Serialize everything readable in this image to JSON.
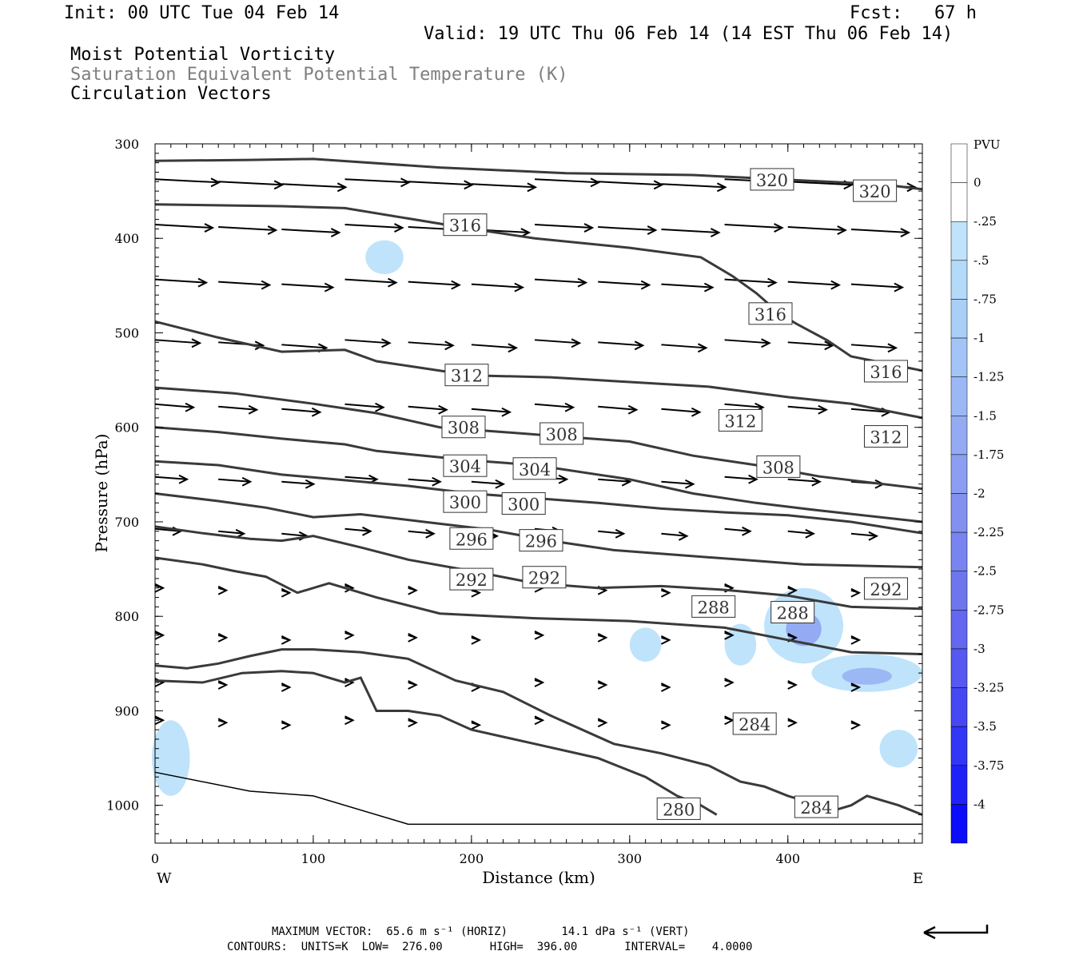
{
  "header": {
    "init": "Init: 00 UTC Tue 04 Feb 14",
    "fcst": "Fcst:   67 h",
    "valid": "Valid: 19 UTC Thu 06 Feb 14 (14 EST Thu 06 Feb 14)",
    "field1": "Moist Potential Vorticity",
    "field2": "Saturation Equivalent Potential Temperature (K)",
    "field3": "Circulation Vectors"
  },
  "colors": {
    "field2_text": "#7f7f7f",
    "contour": "#3a3a3a",
    "pv_light": "#bfe3fb",
    "pv_mid": "#a9c8f5",
    "pv_dark": "#8a9ef0"
  },
  "footer": {
    "max_vector": "MAXIMUM VECTOR:  65.6 m s⁻¹ (HORIZ)        14.1 dPa s⁻¹ (VERT)",
    "contours": "CONTOURS:  UNITS=K  LOW=  276.00       HIGH=  396.00       INTERVAL=    4.0000",
    "ref_arrow_icon": "left-arrow-icon"
  },
  "chart_data": {
    "type": "cross-section contour",
    "xlabel": "Distance (km)",
    "ylabel": "Pressure (hPa)",
    "xlim": [
      0,
      485
    ],
    "ylim": [
      300,
      1040
    ],
    "x_ticks": [
      "0",
      "100",
      "200",
      "300",
      "400"
    ],
    "y_ticks": [
      "300",
      "400",
      "500",
      "600",
      "700",
      "800",
      "900",
      "1000"
    ],
    "x_left_label": "W",
    "x_right_label": "E",
    "colorbar": {
      "title": "PVU",
      "levels": [
        "0",
        "-.25",
        "-.5",
        "-.75",
        "-1",
        "-1.25",
        "-1.5",
        "-1.75",
        "-2",
        "-2.25",
        "-2.5",
        "-2.75",
        "-3",
        "-3.25",
        "-3.5",
        "-3.75",
        "-4"
      ],
      "colors": [
        "#ffffff",
        "#ffffff",
        "#bfe3fb",
        "#b4daf9",
        "#aacff7",
        "#a3c4f6",
        "#9cb8f4",
        "#94abf3",
        "#8b9ef1",
        "#8291f0",
        "#7884ef",
        "#6e76ee",
        "#6467ef",
        "#5658f1",
        "#4548f3",
        "#3236f6",
        "#1f22f8",
        "#0a0cfb"
      ]
    },
    "contour_levels": [
      280,
      284,
      288,
      292,
      296,
      300,
      304,
      308,
      312,
      316,
      320
    ],
    "contour_labels": [
      {
        "text": "320",
        "x": 390,
        "p": 338
      },
      {
        "text": "320",
        "x": 455,
        "p": 350
      },
      {
        "text": "316",
        "x": 196,
        "p": 386
      },
      {
        "text": "316",
        "x": 389,
        "p": 480
      },
      {
        "text": "316",
        "x": 462,
        "p": 541
      },
      {
        "text": "312",
        "x": 197,
        "p": 545
      },
      {
        "text": "312",
        "x": 370,
        "p": 593
      },
      {
        "text": "312",
        "x": 462,
        "p": 610
      },
      {
        "text": "308",
        "x": 195,
        "p": 600
      },
      {
        "text": "308",
        "x": 257,
        "p": 607
      },
      {
        "text": "308",
        "x": 394,
        "p": 642
      },
      {
        "text": "304",
        "x": 196,
        "p": 641
      },
      {
        "text": "304",
        "x": 240,
        "p": 644
      },
      {
        "text": "300",
        "x": 196,
        "p": 679
      },
      {
        "text": "300",
        "x": 233,
        "p": 681
      },
      {
        "text": "296",
        "x": 200,
        "p": 718
      },
      {
        "text": "296",
        "x": 244,
        "p": 720
      },
      {
        "text": "292",
        "x": 200,
        "p": 761
      },
      {
        "text": "292",
        "x": 246,
        "p": 759
      },
      {
        "text": "292",
        "x": 462,
        "p": 771
      },
      {
        "text": "288",
        "x": 353,
        "p": 790
      },
      {
        "text": "288",
        "x": 403,
        "p": 796
      },
      {
        "text": "284",
        "x": 379,
        "p": 914
      },
      {
        "text": "284",
        "x": 418,
        "p": 1002
      },
      {
        "text": "280",
        "x": 331,
        "p": 1004
      }
    ],
    "contours": [
      {
        "level": 320,
        "points": [
          [
            0,
            318
          ],
          [
            60,
            317
          ],
          [
            100,
            316
          ],
          [
            180,
            325
          ],
          [
            260,
            331
          ],
          [
            340,
            333
          ],
          [
            400,
            338
          ],
          [
            460,
            343
          ],
          [
            485,
            348
          ]
        ]
      },
      {
        "level": 316,
        "points": [
          [
            0,
            364
          ],
          [
            80,
            366
          ],
          [
            120,
            368
          ],
          [
            200,
            390
          ],
          [
            240,
            400
          ],
          [
            300,
            410
          ],
          [
            345,
            420
          ],
          [
            365,
            440
          ],
          [
            380,
            458
          ],
          [
            395,
            480
          ],
          [
            405,
            490
          ],
          [
            425,
            508
          ],
          [
            440,
            525
          ],
          [
            485,
            540
          ]
        ]
      },
      {
        "level": 312,
        "points": [
          [
            0,
            488
          ],
          [
            40,
            505
          ],
          [
            80,
            520
          ],
          [
            120,
            518
          ],
          [
            140,
            530
          ],
          [
            160,
            535
          ],
          [
            200,
            545
          ],
          [
            250,
            547
          ],
          [
            300,
            552
          ],
          [
            350,
            557
          ],
          [
            400,
            568
          ],
          [
            440,
            575
          ],
          [
            485,
            590
          ]
        ]
      },
      {
        "level": 308,
        "points": [
          [
            0,
            558
          ],
          [
            50,
            564
          ],
          [
            100,
            575
          ],
          [
            140,
            585
          ],
          [
            180,
            600
          ],
          [
            220,
            605
          ],
          [
            260,
            610
          ],
          [
            300,
            615
          ],
          [
            340,
            630
          ],
          [
            380,
            640
          ],
          [
            420,
            652
          ],
          [
            485,
            665
          ]
        ]
      },
      {
        "level": 304,
        "points": [
          [
            0,
            600
          ],
          [
            40,
            605
          ],
          [
            80,
            612
          ],
          [
            120,
            618
          ],
          [
            140,
            625
          ],
          [
            170,
            630
          ],
          [
            200,
            635
          ],
          [
            240,
            640
          ],
          [
            300,
            655
          ],
          [
            340,
            670
          ],
          [
            380,
            680
          ],
          [
            420,
            688
          ],
          [
            485,
            700
          ]
        ]
      },
      {
        "level": 300,
        "points": [
          [
            0,
            636
          ],
          [
            40,
            640
          ],
          [
            80,
            650
          ],
          [
            120,
            656
          ],
          [
            160,
            662
          ],
          [
            200,
            670
          ],
          [
            240,
            675
          ],
          [
            280,
            680
          ],
          [
            320,
            686
          ],
          [
            360,
            690
          ],
          [
            400,
            693
          ],
          [
            440,
            700
          ],
          [
            485,
            712
          ]
        ]
      },
      {
        "level": 296,
        "points": [
          [
            0,
            670
          ],
          [
            40,
            678
          ],
          [
            70,
            685
          ],
          [
            100,
            695
          ],
          [
            130,
            692
          ],
          [
            170,
            700
          ],
          [
            210,
            708
          ],
          [
            250,
            720
          ],
          [
            290,
            730
          ],
          [
            330,
            735
          ],
          [
            370,
            740
          ],
          [
            410,
            745
          ],
          [
            485,
            748
          ]
        ]
      },
      {
        "level": 292,
        "points": [
          [
            0,
            705
          ],
          [
            30,
            712
          ],
          [
            60,
            718
          ],
          [
            80,
            720
          ],
          [
            100,
            715
          ],
          [
            130,
            727
          ],
          [
            160,
            740
          ],
          [
            200,
            752
          ],
          [
            240,
            765
          ],
          [
            280,
            770
          ],
          [
            320,
            768
          ],
          [
            360,
            772
          ],
          [
            400,
            778
          ],
          [
            440,
            790
          ],
          [
            485,
            792
          ]
        ]
      },
      {
        "level": 288,
        "points": [
          [
            0,
            738
          ],
          [
            30,
            745
          ],
          [
            50,
            752
          ],
          [
            70,
            758
          ],
          [
            90,
            775
          ],
          [
            110,
            765
          ],
          [
            140,
            780
          ],
          [
            180,
            797
          ],
          [
            240,
            802
          ],
          [
            300,
            805
          ],
          [
            360,
            812
          ],
          [
            400,
            825
          ],
          [
            440,
            838
          ],
          [
            485,
            840
          ]
        ]
      },
      {
        "level": 284,
        "points": [
          [
            0,
            852
          ],
          [
            20,
            855
          ],
          [
            40,
            850
          ],
          [
            60,
            842
          ],
          [
            80,
            835
          ],
          [
            100,
            835
          ],
          [
            130,
            838
          ],
          [
            160,
            845
          ],
          [
            190,
            868
          ],
          [
            220,
            880
          ],
          [
            250,
            905
          ],
          [
            290,
            935
          ],
          [
            320,
            945
          ],
          [
            350,
            958
          ],
          [
            370,
            975
          ],
          [
            385,
            980
          ],
          [
            400,
            990
          ],
          [
            410,
            995
          ],
          [
            420,
            1000
          ],
          [
            430,
            1005
          ],
          [
            440,
            1000
          ],
          [
            450,
            990
          ],
          [
            470,
            1000
          ],
          [
            485,
            1010
          ]
        ]
      },
      {
        "level": 280,
        "points": [
          [
            0,
            868
          ],
          [
            30,
            870
          ],
          [
            55,
            860
          ],
          [
            80,
            858
          ],
          [
            100,
            860
          ],
          [
            120,
            870
          ],
          [
            130,
            865
          ],
          [
            140,
            900
          ],
          [
            160,
            900
          ],
          [
            180,
            905
          ],
          [
            200,
            920
          ],
          [
            240,
            935
          ],
          [
            280,
            950
          ],
          [
            310,
            970
          ],
          [
            330,
            990
          ],
          [
            345,
            1000
          ],
          [
            355,
            1010
          ]
        ]
      }
    ],
    "pv_patches_pvu": [
      {
        "x": 145,
        "p": 420,
        "rx": 12,
        "rp": 18,
        "value": -0.5
      },
      {
        "x": 10,
        "p": 950,
        "rx": 12,
        "rp": 40,
        "value": -0.75
      },
      {
        "x": 310,
        "p": 830,
        "rx": 10,
        "rp": 18,
        "value": -0.75
      },
      {
        "x": 370,
        "p": 830,
        "rx": 10,
        "rp": 22,
        "value": -0.75
      },
      {
        "x": 410,
        "p": 810,
        "rx": 25,
        "rp": 40,
        "value": -1.5
      },
      {
        "x": 450,
        "p": 860,
        "rx": 35,
        "rp": 20,
        "value": -1.25
      },
      {
        "x": 470,
        "p": 940,
        "rx": 12,
        "rp": 20,
        "value": -0.5
      }
    ],
    "vectors_note": "circulation vectors, mostly westerly, strongest aloft"
  }
}
